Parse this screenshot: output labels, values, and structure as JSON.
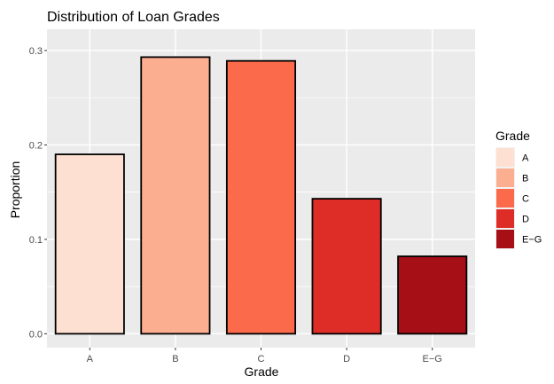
{
  "chart_data": {
    "type": "bar",
    "title": "Distribution of Loan Grades",
    "xlabel": "Grade",
    "ylabel": "Proportion",
    "categories": [
      "A",
      "B",
      "C",
      "D",
      "E−G"
    ],
    "values": [
      0.19,
      0.293,
      0.289,
      0.143,
      0.082
    ],
    "colors": [
      "#fee0d2",
      "#fcae91",
      "#fb6a4a",
      "#de2d26",
      "#a50f15"
    ],
    "ylim": [
      -0.0147,
      0.3225
    ],
    "yticks": [
      0.0,
      0.1,
      0.2,
      0.3
    ],
    "ytick_labels": [
      "0.0",
      "0.1",
      "0.2",
      "0.3"
    ],
    "grid": true,
    "panel_background": "#ebebeb",
    "grid_color": "#ffffff",
    "bar_outline": "#000000",
    "legend": {
      "title": "Grade",
      "placement": "right",
      "entries": [
        "A",
        "B",
        "C",
        "D",
        "E−G"
      ]
    }
  }
}
